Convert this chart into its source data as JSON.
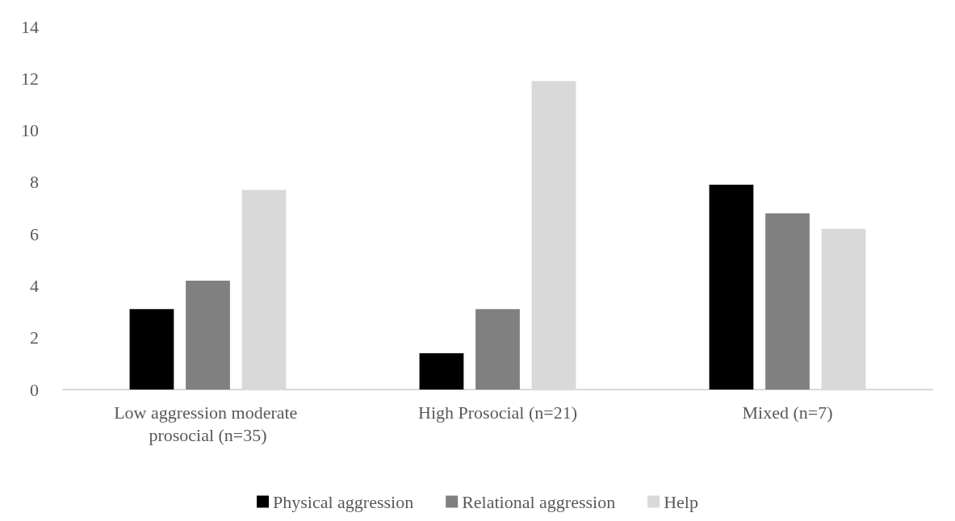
{
  "chart_data": {
    "type": "bar",
    "categories": [
      "Low aggression moderate prosocial (n=35)",
      "High Prosocial (n=21)",
      "Mixed (n=7)"
    ],
    "series": [
      {
        "name": "Physical aggression",
        "color": "#000000",
        "values": [
          3.1,
          1.4,
          7.9
        ]
      },
      {
        "name": "Relational aggression",
        "color": "#808080",
        "values": [
          4.2,
          3.1,
          6.8
        ]
      },
      {
        "name": "Help",
        "color": "#d9d9d9",
        "values": [
          7.7,
          11.9,
          6.2
        ]
      }
    ],
    "ylim": [
      0,
      14
    ],
    "yticks": [
      0,
      2,
      4,
      6,
      8,
      10,
      12,
      14
    ],
    "grid": false,
    "legend": "bottom"
  }
}
